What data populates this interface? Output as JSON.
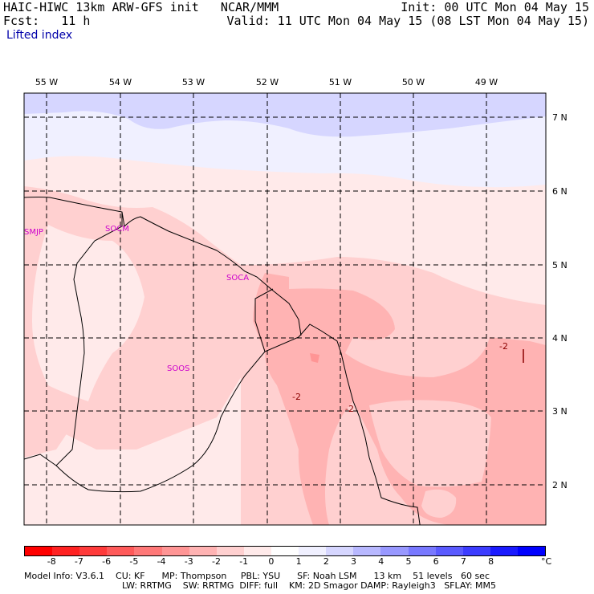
{
  "header": {
    "title": "HAIC-HIWC 13km ARW-GFS init   NCAR/MMM",
    "fcst": "Fcst:   11 h",
    "init": "Init: 00 UTC Mon 04 May 15",
    "valid": "Valid: 11 UTC Mon 04 May 15 (08 LST Mon 04 May 15)",
    "field": "Lifted index"
  },
  "map": {
    "lon_labels": [
      "55 W",
      "54 W",
      "53 W",
      "52 W",
      "51 W",
      "50 W",
      "49 W"
    ],
    "lat_labels": [
      "7 N",
      "6 N",
      "5 N",
      "4 N",
      "3 N",
      "2 N"
    ],
    "stations": [
      "SMJP",
      "SOCM",
      "SOCA",
      "SOOS"
    ],
    "contour_labels": [
      "-2",
      "-2",
      "-2"
    ]
  },
  "colorbar": {
    "colors": [
      "#ff0000",
      "#ff2222",
      "#ff3b3b",
      "#ff5a5a",
      "#ff7878",
      "#ff9595",
      "#ffb3b3",
      "#ffd0d0",
      "#ffeaea",
      "#ffffff",
      "#f0f0ff",
      "#d6d6ff",
      "#b8b8ff",
      "#9898ff",
      "#7878ff",
      "#5a5aff",
      "#3c3cff",
      "#1a1aff",
      "#0000ff"
    ],
    "labels": [
      "-8",
      "-7",
      "-6",
      "-5",
      "-4",
      "-3",
      "-2",
      "-1",
      "0",
      "1",
      "2",
      "3",
      "4",
      "5",
      "6",
      "7",
      "8"
    ],
    "unit": "°C"
  },
  "footer": {
    "line1": "Model Info: V3.6.1    CU: KF      MP: Thompson     PBL: YSU      SF: Noah LSM      13 km    51 levels   60 sec",
    "line2": "LW: RRTMG    SW: RRTMG  DIFF: full    KM: 2D Smagor DAMP: Rayleigh3   SFLAY: MM5"
  }
}
